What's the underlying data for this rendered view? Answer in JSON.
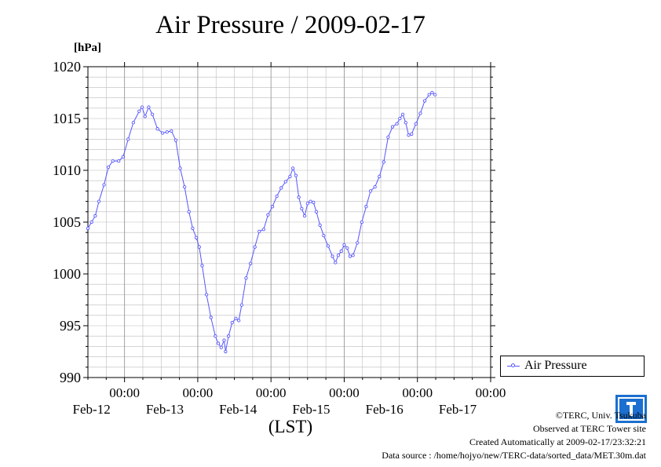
{
  "page": {
    "title": "Air Pressure / 2009-02-17",
    "unit_label": "[hPa]",
    "legend_label": "Air Pressure",
    "credits": [
      "©TERC, Univ. Tsukuba",
      "Observed at TERC Tower site",
      "Created Automatically at 2009-02-17/23:32:21",
      "Data source : /home/hojyo/new/TERC-data/sorted_data/MET.30m.dat"
    ],
    "logo_text": "TERC"
  },
  "colors": {
    "series": "#5555ff",
    "grid": "#bbbbbb",
    "axis": "#000000"
  },
  "chart_data": {
    "type": "line",
    "title": "Air Pressure / 2009-02-17",
    "ylabel": "[hPa]",
    "xlabel": "(LST)",
    "ylim": [
      990,
      1020
    ],
    "y_ticks": [
      990,
      995,
      1000,
      1005,
      1010,
      1015,
      1020
    ],
    "x_unit": "day offset from 2009-02-11 00:00 LST",
    "xlim": [
      1.5,
      7.0
    ],
    "x_ticks": [
      {
        "x": 2,
        "time": "00:00",
        "date": "Feb-12"
      },
      {
        "x": 3,
        "time": "00:00",
        "date": "Feb-13"
      },
      {
        "x": 4,
        "time": "00:00",
        "date": "Feb-14"
      },
      {
        "x": 5,
        "time": "00:00",
        "date": "Feb-15"
      },
      {
        "x": 6,
        "time": "00:00",
        "date": "Feb-16"
      },
      {
        "x": 7,
        "time": "00:00",
        "date": "Feb-17"
      }
    ],
    "grid": true,
    "legend_position": "right",
    "series": [
      {
        "name": "Air Pressure",
        "marker": "open-circle",
        "points": [
          [
            1.5,
            1004.4
          ],
          [
            1.55,
            1005.0
          ],
          [
            1.6,
            1005.6
          ],
          [
            1.65,
            1007.0
          ],
          [
            1.72,
            1008.6
          ],
          [
            1.78,
            1010.3
          ],
          [
            1.84,
            1010.9
          ],
          [
            1.92,
            1010.9
          ],
          [
            1.98,
            1011.3
          ],
          [
            2.05,
            1013.0
          ],
          [
            2.12,
            1014.6
          ],
          [
            2.2,
            1015.7
          ],
          [
            2.24,
            1016.1
          ],
          [
            2.28,
            1015.2
          ],
          [
            2.33,
            1016.1
          ],
          [
            2.38,
            1015.4
          ],
          [
            2.45,
            1014.0
          ],
          [
            2.52,
            1013.6
          ],
          [
            2.58,
            1013.7
          ],
          [
            2.64,
            1013.8
          ],
          [
            2.7,
            1012.9
          ],
          [
            2.76,
            1010.2
          ],
          [
            2.82,
            1008.4
          ],
          [
            2.88,
            1006.0
          ],
          [
            2.93,
            1004.4
          ],
          [
            2.98,
            1003.5
          ],
          [
            3.02,
            1002.6
          ],
          [
            3.06,
            1000.8
          ],
          [
            3.12,
            998.0
          ],
          [
            3.18,
            995.8
          ],
          [
            3.24,
            994.0
          ],
          [
            3.28,
            993.3
          ],
          [
            3.32,
            992.9
          ],
          [
            3.36,
            993.6
          ],
          [
            3.38,
            992.5
          ],
          [
            3.42,
            994.0
          ],
          [
            3.47,
            995.3
          ],
          [
            3.52,
            995.7
          ],
          [
            3.56,
            995.5
          ],
          [
            3.6,
            997.0
          ],
          [
            3.66,
            999.6
          ],
          [
            3.72,
            1001.0
          ],
          [
            3.78,
            1002.6
          ],
          [
            3.84,
            1004.1
          ],
          [
            3.9,
            1004.3
          ],
          [
            3.96,
            1005.7
          ],
          [
            4.02,
            1006.5
          ],
          [
            4.08,
            1007.5
          ],
          [
            4.14,
            1008.3
          ],
          [
            4.2,
            1008.9
          ],
          [
            4.26,
            1009.4
          ],
          [
            4.3,
            1010.2
          ],
          [
            4.34,
            1009.5
          ],
          [
            4.38,
            1007.4
          ],
          [
            4.42,
            1006.3
          ],
          [
            4.46,
            1005.6
          ],
          [
            4.5,
            1006.8
          ],
          [
            4.54,
            1007.0
          ],
          [
            4.58,
            1006.9
          ],
          [
            4.62,
            1006.0
          ],
          [
            4.67,
            1004.7
          ],
          [
            4.72,
            1003.7
          ],
          [
            4.78,
            1002.7
          ],
          [
            4.84,
            1001.7
          ],
          [
            4.88,
            1001.1
          ],
          [
            4.92,
            1001.8
          ],
          [
            4.96,
            1002.2
          ],
          [
            5.0,
            1002.8
          ],
          [
            5.04,
            1002.5
          ],
          [
            5.08,
            1001.7
          ],
          [
            5.12,
            1001.8
          ],
          [
            5.18,
            1003.0
          ],
          [
            5.24,
            1005.0
          ],
          [
            5.3,
            1006.5
          ],
          [
            5.36,
            1008.0
          ],
          [
            5.42,
            1008.4
          ],
          [
            5.48,
            1009.4
          ],
          [
            5.54,
            1010.8
          ],
          [
            5.6,
            1013.2
          ],
          [
            5.66,
            1014.2
          ],
          [
            5.72,
            1014.5
          ],
          [
            5.76,
            1015.0
          ],
          [
            5.8,
            1015.4
          ],
          [
            5.84,
            1014.6
          ],
          [
            5.88,
            1013.4
          ],
          [
            5.92,
            1013.5
          ],
          [
            5.98,
            1014.5
          ],
          [
            6.04,
            1015.5
          ],
          [
            6.1,
            1016.7
          ],
          [
            6.16,
            1017.3
          ],
          [
            6.2,
            1017.5
          ],
          [
            6.24,
            1017.3
          ]
        ]
      }
    ]
  }
}
